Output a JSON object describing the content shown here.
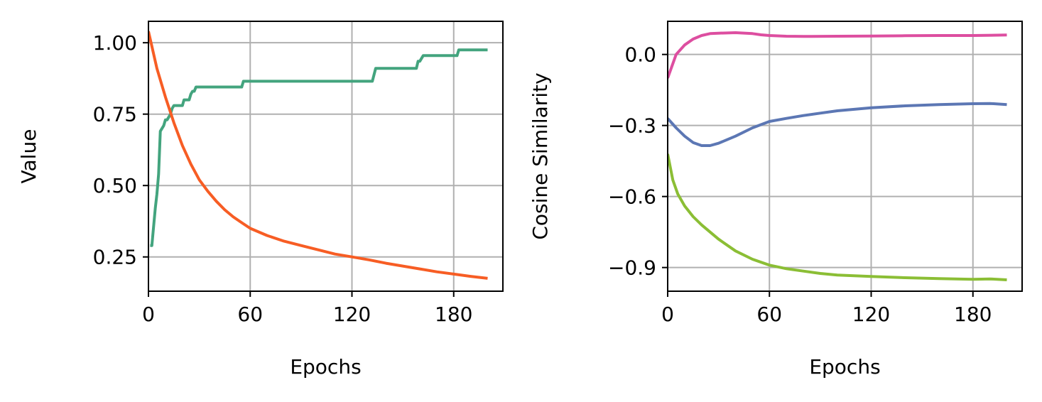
{
  "chart_data": [
    {
      "type": "line",
      "xlabel": "Epochs",
      "ylabel": "Value",
      "xlim": [
        0,
        209
      ],
      "ylim": [
        0.13,
        1.075
      ],
      "xticks": [
        0,
        60,
        120,
        180
      ],
      "xtick_labels": [
        "0",
        "60",
        "120",
        "180"
      ],
      "yticks": [
        0.25,
        0.5,
        0.75,
        1.0
      ],
      "ytick_labels": [
        "0.25",
        "0.50",
        "0.75",
        "1.00"
      ],
      "grid": true,
      "series": [
        {
          "color": "#43a47e",
          "x": [
            1,
            2,
            4,
            5,
            6,
            7,
            8,
            9,
            10,
            11,
            12,
            13,
            14,
            15,
            16,
            20,
            21,
            22,
            24,
            25,
            26,
            27,
            28,
            55,
            56,
            132,
            134,
            158,
            159,
            160,
            162,
            182,
            183,
            200
          ],
          "y": [
            0.29,
            0.29,
            0.42,
            0.47,
            0.54,
            0.69,
            0.7,
            0.71,
            0.73,
            0.73,
            0.74,
            0.75,
            0.77,
            0.78,
            0.78,
            0.78,
            0.8,
            0.8,
            0.8,
            0.82,
            0.83,
            0.83,
            0.845,
            0.845,
            0.865,
            0.865,
            0.91,
            0.91,
            0.935,
            0.935,
            0.955,
            0.955,
            0.975,
            0.975
          ]
        },
        {
          "color": "#f75d24",
          "x": [
            0,
            5,
            10,
            15,
            20,
            25,
            30,
            35,
            40,
            45,
            50,
            55,
            60,
            70,
            80,
            90,
            100,
            110,
            120,
            130,
            140,
            150,
            160,
            170,
            180,
            190,
            200
          ],
          "y": [
            1.04,
            0.91,
            0.81,
            0.72,
            0.64,
            0.575,
            0.52,
            0.48,
            0.445,
            0.415,
            0.39,
            0.37,
            0.35,
            0.325,
            0.305,
            0.29,
            0.275,
            0.26,
            0.25,
            0.24,
            0.228,
            0.218,
            0.208,
            0.198,
            0.19,
            0.182,
            0.175
          ]
        }
      ]
    },
    {
      "type": "line",
      "xlabel": "Epochs",
      "ylabel": "Cosine Similarity",
      "xlim": [
        0,
        209
      ],
      "ylim": [
        -1.0,
        0.14
      ],
      "xticks": [
        0,
        60,
        120,
        180
      ],
      "xtick_labels": [
        "0",
        "60",
        "120",
        "180"
      ],
      "yticks": [
        0.0,
        -0.3,
        -0.6,
        -0.9
      ],
      "ytick_labels": [
        "0.0",
        "−0.3",
        "−0.6",
        "−0.9"
      ],
      "grid": true,
      "series": [
        {
          "color": "#dd4ea0",
          "x": [
            0,
            5,
            10,
            15,
            20,
            25,
            30,
            40,
            50,
            55,
            60,
            70,
            80,
            100,
            120,
            140,
            160,
            180,
            200
          ],
          "y": [
            -0.1,
            0.0,
            0.04,
            0.065,
            0.08,
            0.088,
            0.09,
            0.092,
            0.088,
            0.083,
            0.08,
            0.077,
            0.076,
            0.077,
            0.078,
            0.079,
            0.08,
            0.08,
            0.082
          ]
        },
        {
          "color": "#5c77b4",
          "x": [
            0,
            5,
            10,
            15,
            20,
            25,
            30,
            40,
            50,
            60,
            70,
            80,
            90,
            100,
            120,
            140,
            160,
            180,
            190,
            200
          ],
          "y": [
            -0.27,
            -0.31,
            -0.345,
            -0.372,
            -0.385,
            -0.385,
            -0.375,
            -0.345,
            -0.31,
            -0.283,
            -0.27,
            -0.258,
            -0.248,
            -0.238,
            -0.225,
            -0.217,
            -0.212,
            -0.208,
            -0.207,
            -0.212
          ]
        },
        {
          "color": "#8bbe35",
          "x": [
            0,
            3,
            6,
            10,
            15,
            20,
            25,
            30,
            40,
            50,
            60,
            70,
            80,
            90,
            100,
            120,
            140,
            160,
            180,
            190,
            200
          ],
          "y": [
            -0.42,
            -0.53,
            -0.59,
            -0.64,
            -0.685,
            -0.72,
            -0.75,
            -0.78,
            -0.83,
            -0.865,
            -0.89,
            -0.905,
            -0.915,
            -0.925,
            -0.932,
            -0.938,
            -0.943,
            -0.947,
            -0.95,
            -0.948,
            -0.952
          ]
        }
      ]
    }
  ]
}
